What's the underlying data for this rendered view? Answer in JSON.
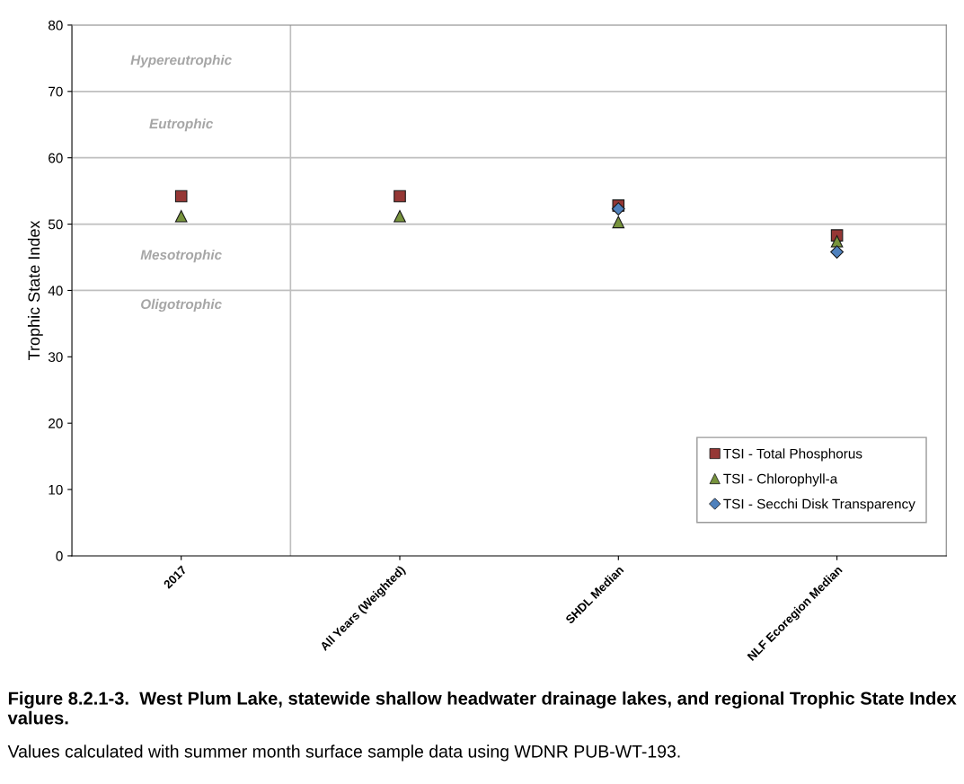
{
  "chart_data": {
    "type": "scatter",
    "title": "Figure 8.2.1-3.  West Plum Lake, statewide shallow headwater drainage lakes, and regional Trophic State Index values.",
    "subtitle": "Values calculated with summer month surface sample data using WDNR PUB-WT-193.",
    "ylabel": "Trophic State Index",
    "categories": [
      "2017",
      "All Years (Weighted)",
      "SHDL Median",
      "NLF Ecoregion Median"
    ],
    "series": [
      {
        "name": "TSI - Total Phosphorus",
        "color": "#953735",
        "marker": "square",
        "values": [
          54.2,
          54.2,
          52.8,
          48.3
        ]
      },
      {
        "name": "TSI - Chlorophyll-a",
        "color": "#77933c",
        "marker": "triangle",
        "values": [
          51.2,
          51.2,
          50.3,
          47.4
        ]
      },
      {
        "name": "TSI - Secchi Disk Transparency",
        "color": "#4f81bd",
        "marker": "diamond",
        "values": [
          null,
          null,
          52.3,
          45.8
        ]
      }
    ],
    "ylim": [
      0,
      80
    ],
    "yticks": [
      0,
      10,
      20,
      30,
      40,
      50,
      60,
      70,
      80
    ],
    "grid": false,
    "legend": "bottom right",
    "ref_lines": [
      {
        "axis": "y",
        "value": 40,
        "color": "#bfbfbf"
      },
      {
        "axis": "y",
        "value": 50,
        "color": "#bfbfbf"
      },
      {
        "axis": "y",
        "value": 60,
        "color": "#bfbfbf"
      },
      {
        "axis": "y",
        "value": 70,
        "color": "#bfbfbf"
      }
    ],
    "annotations": [
      "Hypereutrophic",
      "Eutrophic",
      "Mesotrophic",
      "Oligotrophic"
    ]
  }
}
